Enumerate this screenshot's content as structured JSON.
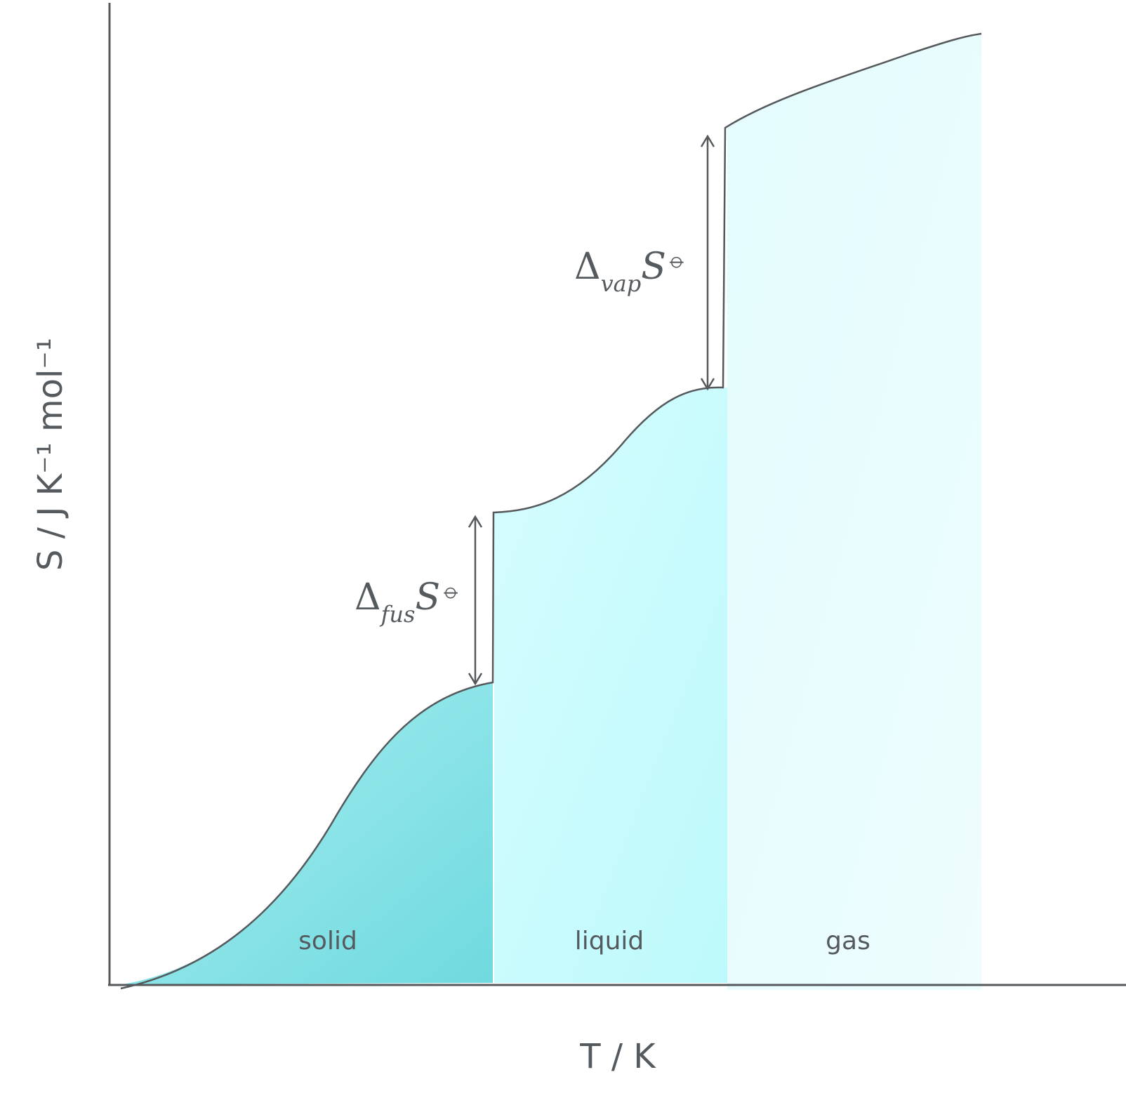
{
  "axes": {
    "x_label": "T / K",
    "y_label": "S / J K⁻¹ mol⁻¹"
  },
  "regions": [
    {
      "label": "solid",
      "color": "#7fdde2"
    },
    {
      "label": "liquid",
      "color": "#c7fbfd"
    },
    {
      "label": "gas",
      "color": "#e8fcfd"
    }
  ],
  "transitions": {
    "fusion": {
      "symbol": "Δ",
      "subscript": "fus",
      "quantity": "S",
      "superscript": "⦵"
    },
    "vaporisation": {
      "symbol": "Δ",
      "subscript": "vap",
      "quantity": "S",
      "superscript": "⦵"
    }
  },
  "colors": {
    "curve": "#55595c",
    "axis": "#55595c"
  }
}
